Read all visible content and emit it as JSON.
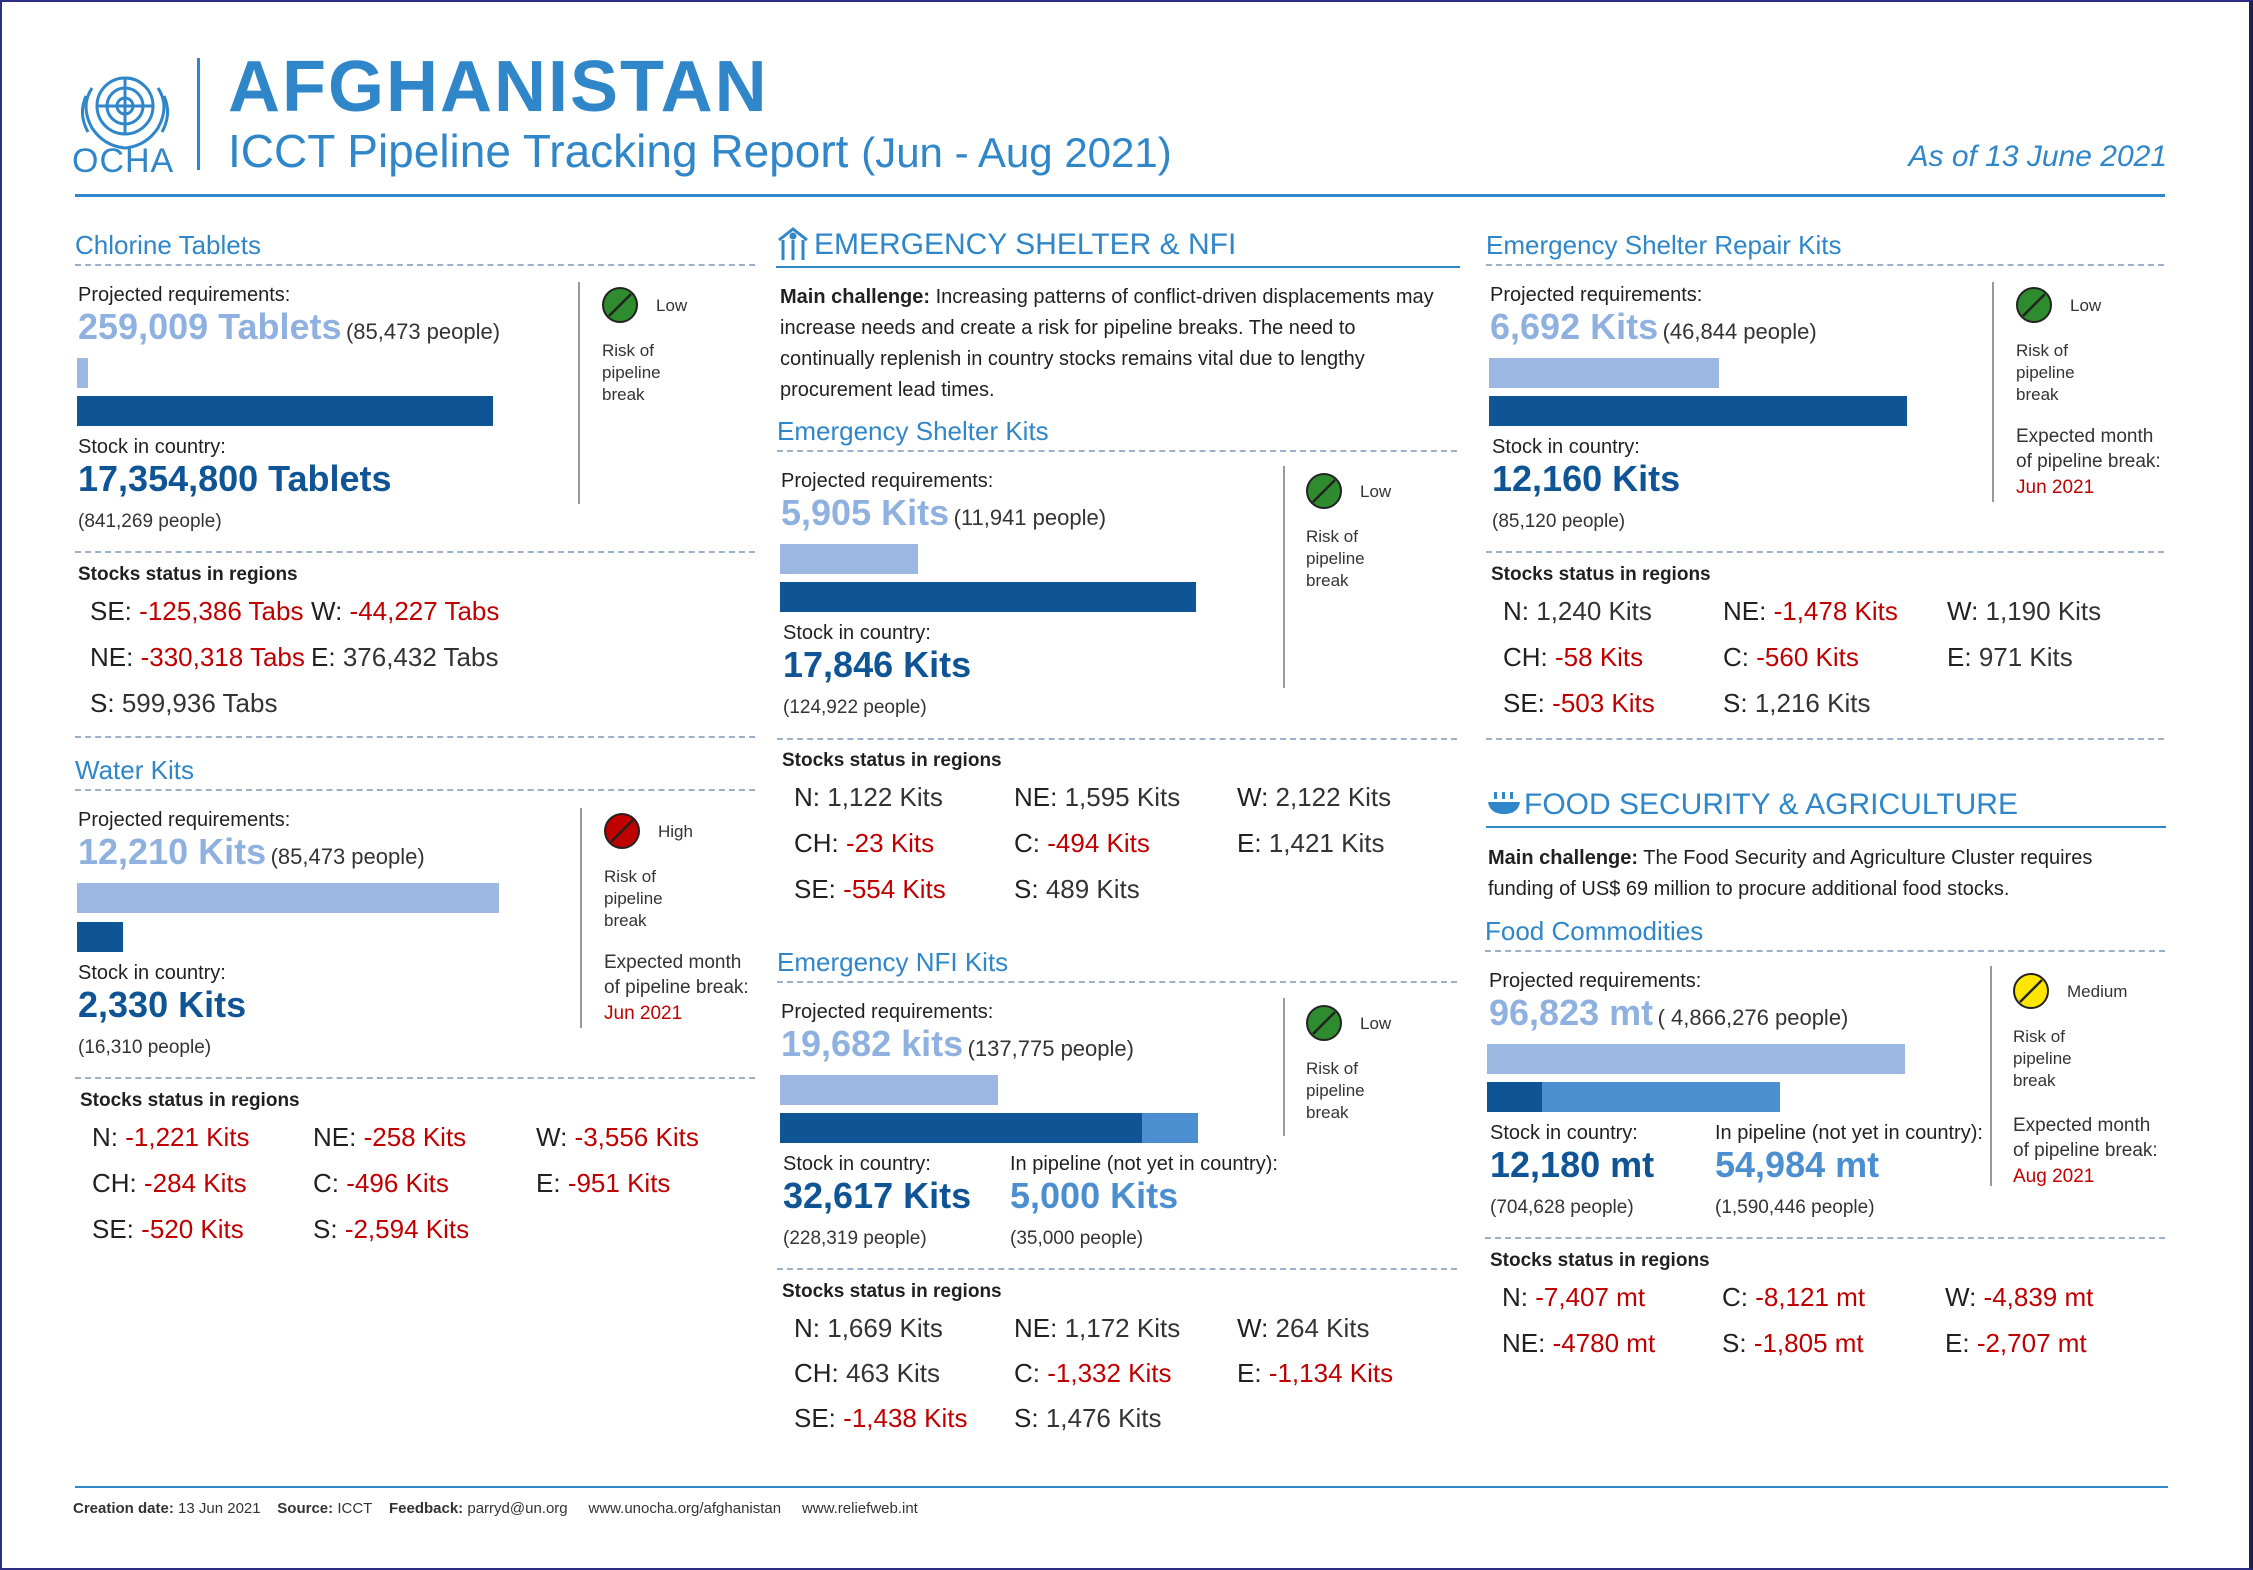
{
  "header": {
    "logo_text": "OCHA",
    "title": "AFGHANISTAN",
    "subtitle_main": "ICCT Pipeline Tracking Report",
    "subtitle_period": "(Jun - Aug 2021)",
    "as_of": "As of 13 June 2021"
  },
  "colors": {
    "accent": "#2f86c8",
    "dark_bar": "#0f5596",
    "light_bar": "#9db7e3",
    "negative": "#c00000",
    "risk_low": "#2e8b2e",
    "risk_high": "#c00000",
    "risk_medium": "#ffe600"
  },
  "common": {
    "projected": "Projected requirements:",
    "stock": "Stock in country:",
    "pipeline": "In pipeline (not yet in country):",
    "risk_label": [
      "Risk of",
      "pipeline",
      "break"
    ],
    "expected_label": [
      "Expected month",
      "of pipeline break:"
    ],
    "stocks_status": "Stocks status in regions",
    "main_challenge": "Main challenge:"
  },
  "chlorine": {
    "title": "Chlorine Tablets",
    "req_value": "259,009 Tablets",
    "req_people": "(85,473 people)",
    "stock_value": "17,354,800 Tablets",
    "stock_people": "(841,269 people)",
    "risk": "Low",
    "regions": [
      {
        "code": "SE:",
        "val": "-125,386 Tabs",
        "neg": true
      },
      {
        "code": "W:",
        "val": "-44,227 Tabs",
        "neg": true
      },
      {
        "code": "NE:",
        "val": "-330,318 Tabs",
        "neg": true
      },
      {
        "code": "E:",
        "val": "376,432 Tabs",
        "neg": false
      },
      {
        "code": "S:",
        "val": "599,936 Tabs",
        "neg": false
      }
    ]
  },
  "water": {
    "title": "Water Kits",
    "req_value": "12,210 Kits",
    "req_people": "(85,473 people)",
    "stock_value": "2,330 Kits",
    "stock_people": "(16,310 people)",
    "risk": "High",
    "expected_month": "Jun 2021",
    "coverage_fraction": 0.19,
    "regions": [
      {
        "code": "N:",
        "val": "-1,221 Kits",
        "neg": true
      },
      {
        "code": "NE:",
        "val": "-258 Kits",
        "neg": true
      },
      {
        "code": "W:",
        "val": "-3,556 Kits",
        "neg": true
      },
      {
        "code": "CH:",
        "val": "-284 Kits",
        "neg": true
      },
      {
        "code": "C:",
        "val": "-496 Kits",
        "neg": true
      },
      {
        "code": "E:",
        "val": "-951 Kits",
        "neg": true
      },
      {
        "code": "SE:",
        "val": "-520 Kits",
        "neg": true
      },
      {
        "code": "S:",
        "val": "-2,594 Kits",
        "neg": true
      }
    ]
  },
  "shelter_nfi": {
    "title": "EMERGENCY SHELTER & NFI",
    "challenge": "Increasing patterns of conflict-driven displacements may increase needs and create a risk for pipeline breaks. The need to continually replenish in country stocks remains vital due to lengthy procurement lead times."
  },
  "shelter_kits": {
    "title": "Emergency Shelter Kits",
    "req_value": "5,905 Kits",
    "req_people": "(11,941 people)",
    "stock_value": "17,846 Kits",
    "stock_people": "(124,922 people)",
    "risk": "Low",
    "regions": [
      {
        "code": "N:",
        "val": "1,122 Kits",
        "neg": false
      },
      {
        "code": "NE:",
        "val": "1,595 Kits",
        "neg": false
      },
      {
        "code": "W:",
        "val": "2,122 Kits",
        "neg": false
      },
      {
        "code": "CH:",
        "val": "-23 Kits",
        "neg": true
      },
      {
        "code": "C:",
        "val": "-494 Kits",
        "neg": true
      },
      {
        "code": "E:",
        "val": "1,421 Kits",
        "neg": false
      },
      {
        "code": "SE:",
        "val": "-554 Kits",
        "neg": true
      },
      {
        "code": "S:",
        "val": "489 Kits",
        "neg": false
      }
    ]
  },
  "nfi_kits": {
    "title": "Emergency NFI Kits",
    "req_value": "19,682 kits",
    "req_people": "(137,775 people)",
    "stock_value": "32,617 Kits",
    "stock_people": "(228,319 people)",
    "pipeline_value": "5,000 Kits",
    "pipeline_people": "(35,000 people)",
    "risk": "Low",
    "regions": [
      {
        "code": "N:",
        "val": "1,669 Kits",
        "neg": false
      },
      {
        "code": "NE:",
        "val": "1,172 Kits",
        "neg": false
      },
      {
        "code": "W:",
        "val": "264 Kits",
        "neg": false
      },
      {
        "code": "CH:",
        "val": "463 Kits",
        "neg": false
      },
      {
        "code": "C:",
        "val": "-1,332 Kits",
        "neg": true
      },
      {
        "code": "E:",
        "val": "-1,134 Kits",
        "neg": true
      },
      {
        "code": "SE:",
        "val": "-1,438 Kits",
        "neg": true
      },
      {
        "code": "S:",
        "val": "1,476 Kits",
        "neg": false
      }
    ]
  },
  "repair_kits": {
    "title": "Emergency Shelter Repair Kits",
    "req_value": "6,692 Kits",
    "req_people": "(46,844 people)",
    "stock_value": "12,160 Kits",
    "stock_people": "(85,120 people)",
    "risk": "Low",
    "expected_month": "Jun 2021",
    "regions": [
      {
        "code": "N:",
        "val": "1,240 Kits",
        "neg": false
      },
      {
        "code": "NE:",
        "val": "-1,478 Kits",
        "neg": true
      },
      {
        "code": "W:",
        "val": "1,190 Kits",
        "neg": false
      },
      {
        "code": "CH:",
        "val": "-58 Kits",
        "neg": true
      },
      {
        "code": "C:",
        "val": "-560 Kits",
        "neg": true
      },
      {
        "code": "E:",
        "val": "971 Kits",
        "neg": false
      },
      {
        "code": "SE:",
        "val": "-503 Kits",
        "neg": true
      },
      {
        "code": "S:",
        "val": "1,216 Kits",
        "neg": false
      }
    ]
  },
  "food_sec": {
    "title": "FOOD SECURITY & AGRICULTURE",
    "challenge": "The Food Security and Agriculture Cluster requires funding of US$ 69 million to procure additional food stocks."
  },
  "food_comm": {
    "title": "Food Commodities",
    "req_value": "96,823 mt",
    "req_people": "( 4,866,276 people)",
    "stock_value": "12,180 mt",
    "stock_people": "(704,628 people)",
    "pipeline_value": "54,984 mt",
    "pipeline_people": "(1,590,446 people)",
    "risk": "Medium",
    "expected_month": "Aug 2021",
    "regions": [
      {
        "code": "N:",
        "val": "-7,407 mt",
        "neg": true
      },
      {
        "code": "C:",
        "val": "-8,121 mt",
        "neg": true
      },
      {
        "code": "W:",
        "val": "-4,839 mt",
        "neg": true
      },
      {
        "code": "NE:",
        "val": "-4780 mt",
        "neg": true
      },
      {
        "code": "S:",
        "val": "-1,805 mt",
        "neg": true
      },
      {
        "code": "E:",
        "val": "-2,707 mt",
        "neg": true
      }
    ]
  },
  "footer": {
    "creation_label": "Creation date:",
    "creation_value": "13 Jun 2021",
    "source_label": "Source:",
    "source_value": "ICCT",
    "feedback_label": "Feedback:",
    "feedback_value": "parryd@un.org",
    "link1": "www.unocha.org/afghanistan",
    "link2": "www.reliefweb.int"
  }
}
